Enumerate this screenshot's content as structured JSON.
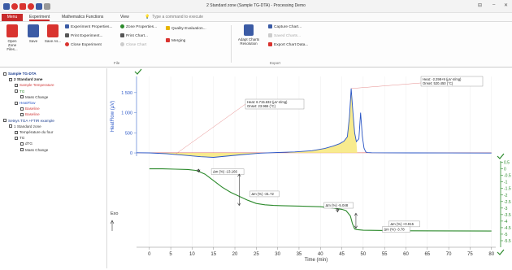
{
  "window": {
    "title": "2 Standard zone (Sample TG-DTA) - Processing Demo",
    "buttons": [
      "⊟",
      "–",
      "✕"
    ]
  },
  "menu": {
    "menu_label": "Menu",
    "tabs": [
      "Experiment",
      "Mathematics Functions",
      "View"
    ],
    "search_placeholder": "Type a command to execute"
  },
  "ribbon": {
    "file_buttons": [
      {
        "label": "Open Zone Files...",
        "icon": "open-icon",
        "color": "#d9332f"
      },
      {
        "label": "Save",
        "icon": "save-icon",
        "color": "#3b5ba5"
      },
      {
        "label": "Save As...",
        "icon": "save-as-icon",
        "color": "#d9332f"
      }
    ],
    "experiment_col1": [
      "Experiment Properties...",
      "Print Experiment...",
      "Close Experiment"
    ],
    "experiment_col2": [
      "Zone Properties...",
      "Print Chart...",
      "Close Chart"
    ],
    "experiment_col3": [
      "Quality Evaluation...",
      "Merging"
    ],
    "file_group_label": "File",
    "adapt_button": "Adapt Charts Resolution",
    "export_items": [
      "Capture Chart...",
      "Saved Charts...",
      "Export Chart Data..."
    ],
    "export_group_label": "Export"
  },
  "tree": [
    {
      "label": "Sample TG-DTA",
      "indent": 0,
      "bold": true,
      "color": "#1a3d8f"
    },
    {
      "label": "2 Standard zone",
      "indent": 1,
      "bold": true,
      "color": "#222"
    },
    {
      "label": "Sample Temperature",
      "indent": 2,
      "bold": false,
      "color": "#d23b3b"
    },
    {
      "label": "TG",
      "indent": 2,
      "bold": false,
      "color": "#2c8a2c"
    },
    {
      "label": "Mass Change",
      "indent": 3,
      "bold": false,
      "color": "#333"
    },
    {
      "label": "HeatFlow",
      "indent": 2,
      "bold": false,
      "color": "#2a56c6"
    },
    {
      "label": "Baseline",
      "indent": 3,
      "bold": false,
      "color": "#d23b3b"
    },
    {
      "label": "Baseline",
      "indent": 3,
      "bold": false,
      "color": "#d23b3b"
    },
    {
      "label": "Setsys TGA +FTIR example",
      "indent": 0,
      "bold": false,
      "color": "#1a3d8f"
    },
    {
      "label": "1 Standard zone",
      "indent": 1,
      "bold": false,
      "color": "#333"
    },
    {
      "label": "Température du four",
      "indent": 2,
      "bold": false,
      "color": "#333"
    },
    {
      "label": "TG",
      "indent": 2,
      "bold": false,
      "color": "#333"
    },
    {
      "label": "dTG",
      "indent": 3,
      "bold": false,
      "color": "#333"
    },
    {
      "label": "Mass Change",
      "indent": 3,
      "bold": false,
      "color": "#333"
    }
  ],
  "chart_data": {
    "type": "line",
    "xlabel": "Time (min)",
    "xticks": [
      0,
      5,
      10,
      15,
      20,
      25,
      30,
      35,
      40,
      45,
      50,
      55,
      60,
      65,
      70,
      75,
      80
    ],
    "xlim": [
      -3,
      81
    ],
    "heatflow": {
      "ylabel": "HeatFlow (µV)",
      "yticks": [
        0,
        500,
        1000,
        1500
      ],
      "ylim": [
        -80,
        1900
      ],
      "tick_labels": [
        "0",
        "500",
        "1 000",
        "1 500"
      ],
      "series": [
        {
          "name": "HeatFlow",
          "color": "#2a56c6",
          "x": [
            -3,
            0,
            4,
            8,
            12,
            15,
            18,
            22,
            26,
            30,
            34,
            38,
            41,
            43,
            44.5,
            45.5,
            46.3,
            46.8,
            47.2,
            47.6,
            48,
            48.4,
            49,
            49.4,
            49.8,
            50.2,
            50.6,
            51,
            52,
            56,
            62,
            70,
            80
          ],
          "y": [
            5,
            0,
            -20,
            -55,
            -95,
            -110,
            -80,
            -40,
            -5,
            10,
            25,
            55,
            110,
            170,
            230,
            290,
            400,
            900,
            1600,
            1000,
            500,
            280,
            350,
            1000,
            420,
            120,
            25,
            8,
            4,
            2,
            0,
            -2,
            -3
          ]
        },
        {
          "name": "Baseline",
          "color": "#d23b3b",
          "x": [
            -3,
            80
          ],
          "y": [
            3,
            3
          ]
        }
      ]
    },
    "tg": {
      "ylim": [
        -6,
        0.6
      ],
      "yticks": [
        0.5,
        0,
        -0.5,
        -1,
        -1.5,
        -2,
        -2.5,
        -3,
        -3.5,
        -4,
        -4.5,
        -5,
        -5.5
      ],
      "tick_labels": [
        "0.5",
        "0",
        "-0.5",
        "-1",
        "-1.5",
        "-2",
        "-2.5",
        "-3",
        "-3.5",
        "-4",
        "-4.5",
        "-5",
        "-5.5"
      ],
      "series": [
        {
          "name": "TG",
          "color": "#2c8a2c",
          "x": [
            0,
            3,
            6,
            9,
            11,
            13,
            15,
            17,
            19,
            21,
            23,
            25,
            27,
            29,
            31,
            35,
            40,
            43,
            45,
            46,
            47,
            47.5,
            48,
            48.5,
            50,
            55,
            60,
            70,
            80
          ],
          "y": [
            0,
            0,
            -0.02,
            -0.05,
            -0.12,
            -0.4,
            -0.9,
            -1.4,
            -1.8,
            -2.1,
            -2.4,
            -2.65,
            -2.75,
            -2.8,
            -2.82,
            -2.85,
            -2.9,
            -3.0,
            -3.1,
            -3.2,
            -3.6,
            -4.2,
            -4.6,
            -4.65,
            -4.7,
            -4.72,
            -4.74,
            -4.75,
            -4.76
          ]
        }
      ]
    },
    "annotations": [
      {
        "text1": "Heat: 6.715.632 (µV·s/mg)",
        "text2": "Onset: 23.966 (°C)"
      },
      {
        "text1": "Heat: -2.298+9 (µV·s/mg)",
        "text2": "Onset: 520.450 (°C)"
      },
      {
        "text1": "∆m (%) -13.166"
      },
      {
        "text1": "∆m (%) -31.72"
      },
      {
        "text1": "∆m (%) -5.048"
      },
      {
        "text1": "∆m (%) +0.915"
      },
      {
        "text1": "∆m (%) -3.78"
      }
    ],
    "exo_label": "Exo"
  }
}
